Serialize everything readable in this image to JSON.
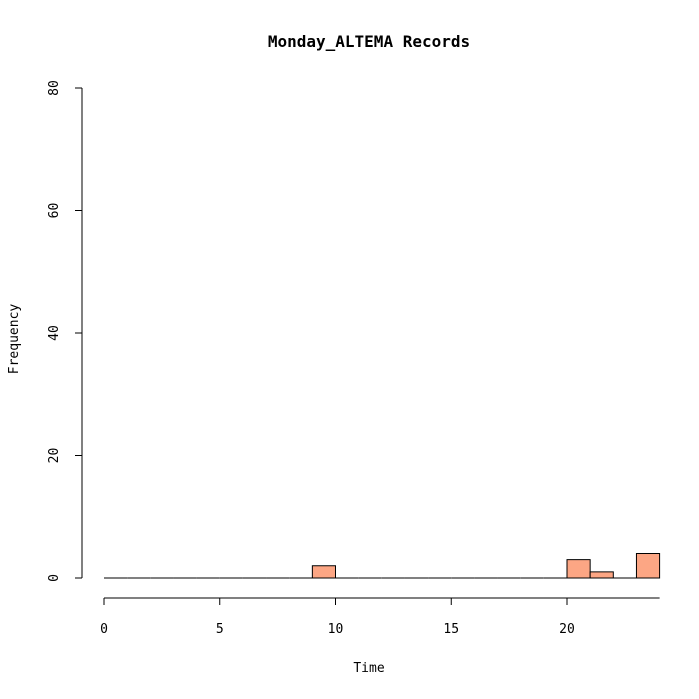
{
  "chart_data": {
    "type": "bar",
    "title": "Monday_ALTEMA Records",
    "xlabel": "Time",
    "ylabel": "Frequency",
    "xlim": [
      0,
      24
    ],
    "ylim": [
      0,
      80
    ],
    "x_ticks": [
      "0",
      "5",
      "10",
      "15",
      "20"
    ],
    "y_ticks": [
      "0",
      "20",
      "40",
      "60",
      "80"
    ],
    "bins": [
      {
        "x0": 0,
        "x1": 1,
        "value": 0
      },
      {
        "x0": 1,
        "x1": 2,
        "value": 0
      },
      {
        "x0": 2,
        "x1": 3,
        "value": 0
      },
      {
        "x0": 3,
        "x1": 4,
        "value": 0
      },
      {
        "x0": 4,
        "x1": 5,
        "value": 0
      },
      {
        "x0": 5,
        "x1": 6,
        "value": 0
      },
      {
        "x0": 6,
        "x1": 7,
        "value": 0
      },
      {
        "x0": 7,
        "x1": 8,
        "value": 0
      },
      {
        "x0": 8,
        "x1": 9,
        "value": 0
      },
      {
        "x0": 9,
        "x1": 10,
        "value": 2
      },
      {
        "x0": 10,
        "x1": 11,
        "value": 0
      },
      {
        "x0": 11,
        "x1": 12,
        "value": 0
      },
      {
        "x0": 12,
        "x1": 13,
        "value": 0
      },
      {
        "x0": 13,
        "x1": 14,
        "value": 0
      },
      {
        "x0": 14,
        "x1": 15,
        "value": 0
      },
      {
        "x0": 15,
        "x1": 16,
        "value": 0
      },
      {
        "x0": 16,
        "x1": 17,
        "value": 0
      },
      {
        "x0": 17,
        "x1": 18,
        "value": 0
      },
      {
        "x0": 18,
        "x1": 19,
        "value": 0
      },
      {
        "x0": 19,
        "x1": 20,
        "value": 0
      },
      {
        "x0": 20,
        "x1": 21,
        "value": 3
      },
      {
        "x0": 21,
        "x1": 22,
        "value": 1
      },
      {
        "x0": 22,
        "x1": 23,
        "value": 0
      },
      {
        "x0": 23,
        "x1": 24,
        "value": 4
      }
    ],
    "bar_color": "#FCA684",
    "grid": false,
    "legend": "none"
  }
}
